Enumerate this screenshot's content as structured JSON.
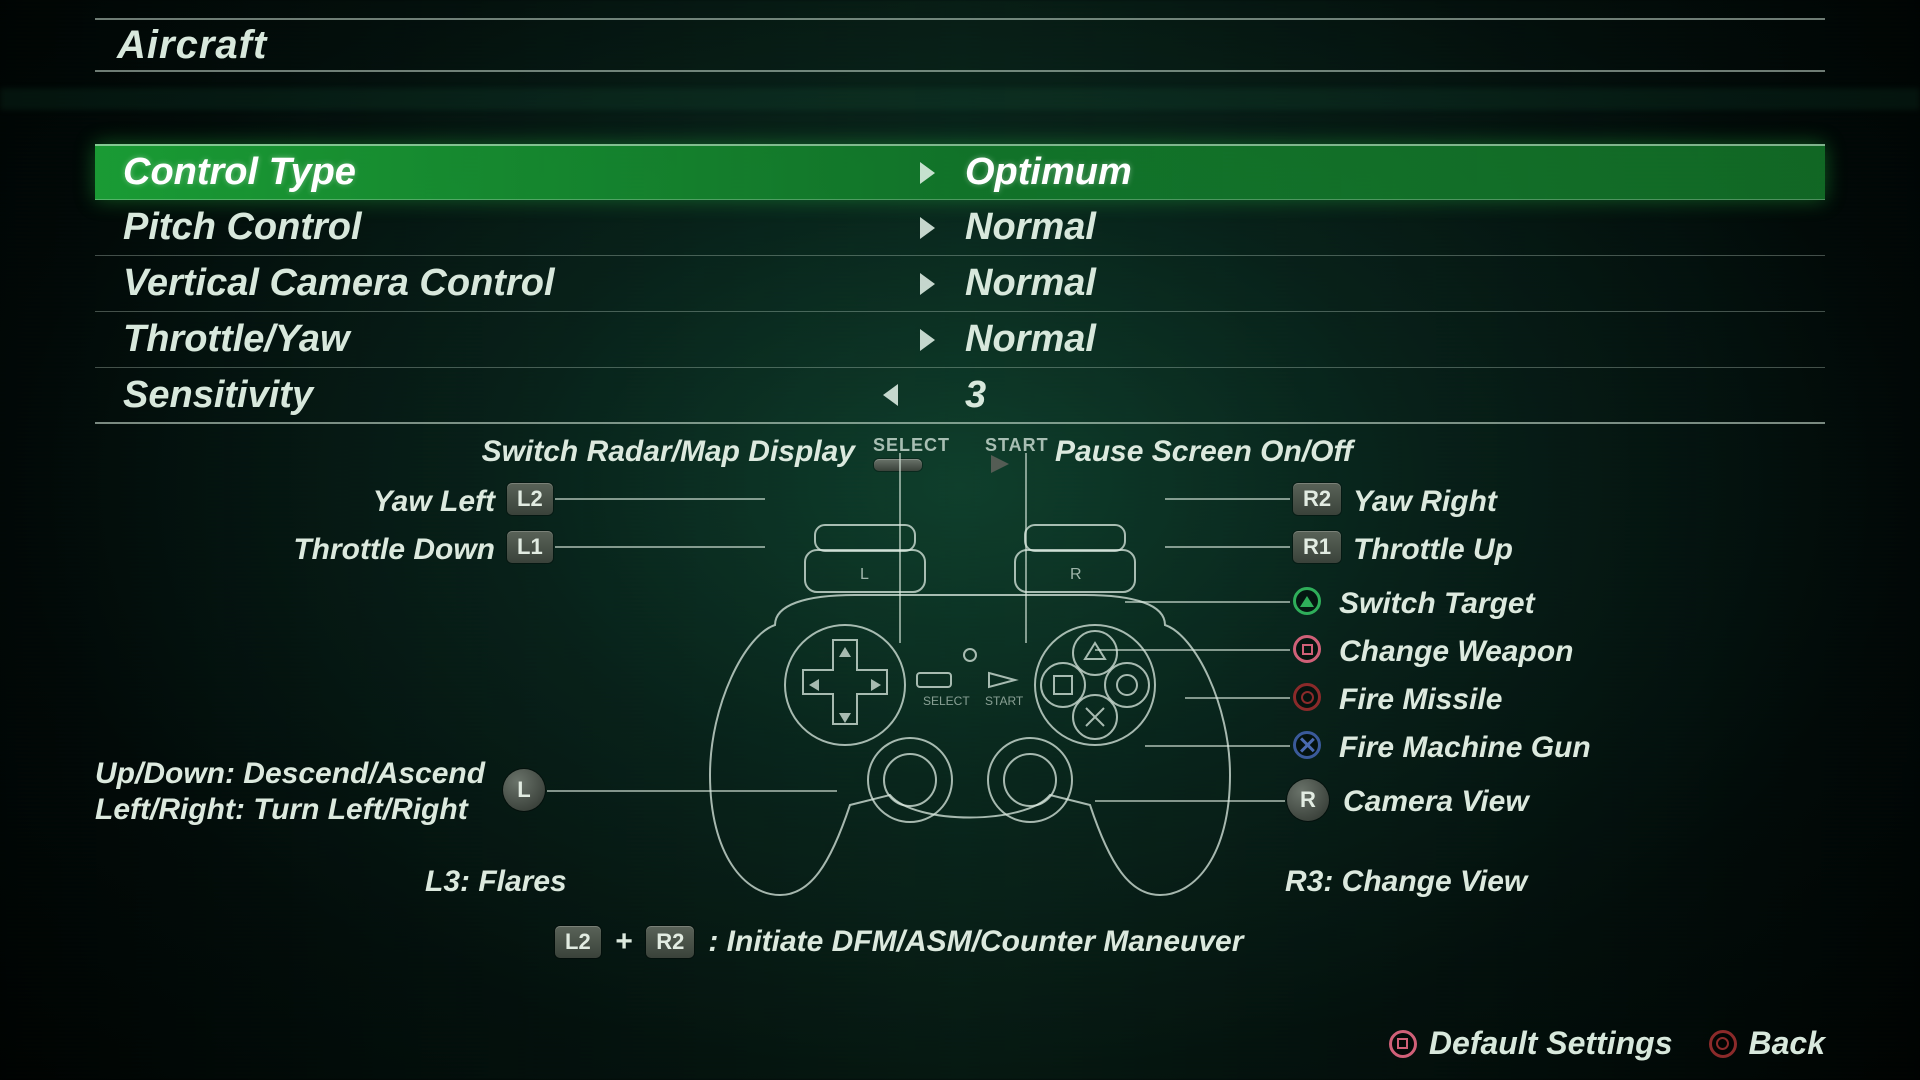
{
  "title": "Aircraft",
  "colors": {
    "accent_green": "#22b44a",
    "text": "#d8e8dc",
    "chip_bg": "#4a524a"
  },
  "settings": [
    {
      "label": "Control Type",
      "value": "Optimum",
      "selected": true,
      "leftArrow": false,
      "rightArrow": true
    },
    {
      "label": "Pitch Control",
      "value": "Normal",
      "selected": false,
      "leftArrow": false,
      "rightArrow": true
    },
    {
      "label": "Vertical Camera Control",
      "value": "Normal",
      "selected": false,
      "leftArrow": false,
      "rightArrow": true
    },
    {
      "label": "Throttle/Yaw",
      "value": "Normal",
      "selected": false,
      "leftArrow": false,
      "rightArrow": true
    },
    {
      "label": "Sensitivity",
      "value": "3",
      "selected": false,
      "leftArrow": true,
      "rightArrow": false
    }
  ],
  "mappings": {
    "select_label": "SELECT",
    "start_label": "START",
    "select_action": "Switch Radar/Map Display",
    "start_action": "Pause Screen On/Off",
    "l2_key": "L2",
    "l2_action": "Yaw Left",
    "l1_key": "L1",
    "l1_action": "Throttle Down",
    "r2_key": "R2",
    "r2_action": "Yaw Right",
    "r1_key": "R1",
    "r1_action": "Throttle Up",
    "triangle_action": "Switch Target",
    "square_action": "Change Weapon",
    "circle_action": "Fire Missile",
    "cross_action": "Fire Machine Gun",
    "rstick_action": "Camera View",
    "lstick_line1": "Up/Down: Descend/Ascend",
    "lstick_line2": "Left/Right: Turn Left/Right",
    "l3_action": "L3: Flares",
    "r3_action": "R3: Change View",
    "combo_l": "L2",
    "combo_plus": "+",
    "combo_r": "R2",
    "combo_action": ": Initiate DFM/ASM/Counter Maneuver",
    "lstick_chip": "L",
    "rstick_chip": "R"
  },
  "footer": {
    "default_label": "Default Settings",
    "back_label": "Back"
  }
}
